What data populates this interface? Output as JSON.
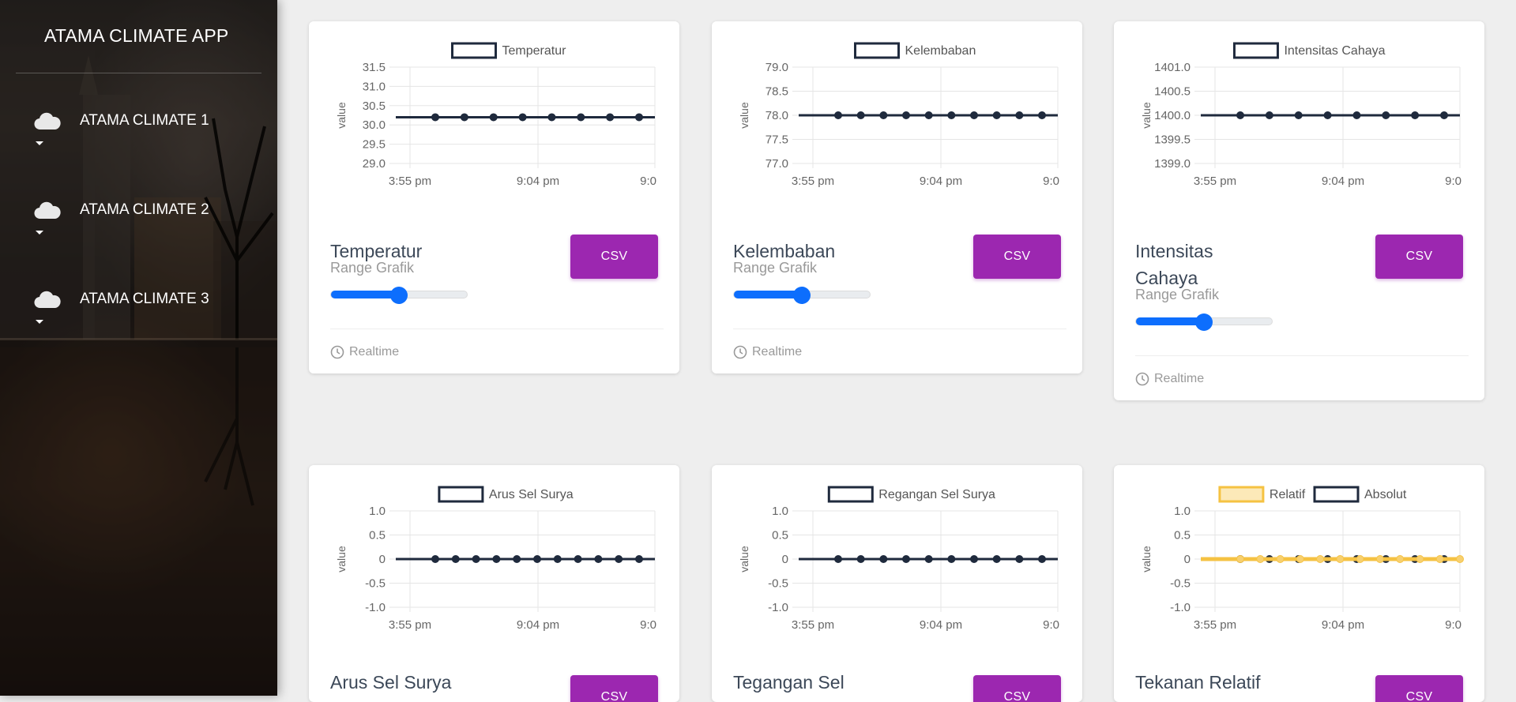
{
  "app": {
    "title": "ATAMA CLIMATE APP"
  },
  "sidebar": {
    "items": [
      {
        "label": "ATAMA CLIMATE 1",
        "icon": "cloud-icon"
      },
      {
        "label": "ATAMA CLIMATE 2",
        "icon": "cloud-icon"
      },
      {
        "label": "ATAMA CLIMATE 3",
        "icon": "cloud-icon"
      }
    ]
  },
  "colors": {
    "accent": "#9c27b0",
    "slider": "#0d6efd",
    "series_dark": "#1f2a3d",
    "series_yellow": "#f5c242"
  },
  "cards": [
    {
      "title": "Temperatur",
      "category": "Range Grafik",
      "button": "CSV",
      "footer": "Realtime",
      "slider_value": 0.5
    },
    {
      "title": "Kelembaban",
      "category": "Range Grafik",
      "button": "CSV",
      "footer": "Realtime",
      "slider_value": 0.5
    },
    {
      "title": "Intensitas Cahaya",
      "category": "Range Grafik",
      "button": "CSV",
      "footer": "Realtime",
      "slider_value": 0.5
    },
    {
      "title": "Arus Sel Surya",
      "button": "CSV"
    },
    {
      "title": "Tegangan Sel",
      "button": "CSV"
    },
    {
      "title": "Tekanan Relatif",
      "button": "CSV"
    }
  ],
  "chart_data": [
    {
      "type": "line",
      "title": "",
      "ylabel": "value",
      "ylim": [
        29.0,
        31.5
      ],
      "yticks": [
        "31.5",
        "31.0",
        "30.5",
        "30.0",
        "29.5",
        "29.0"
      ],
      "xticks": [
        "3:55 pm",
        "9:04 pm",
        "9:0"
      ],
      "series": [
        {
          "name": "Temperatur",
          "values": [
            30.2,
            30.2,
            30.2,
            30.2,
            30.2,
            30.2,
            30.2,
            30.2
          ]
        }
      ]
    },
    {
      "type": "line",
      "title": "",
      "ylabel": "value",
      "ylim": [
        77.0,
        79.0
      ],
      "yticks": [
        "79.0",
        "78.5",
        "78.0",
        "77.5",
        "77.0"
      ],
      "xticks": [
        "3:55 pm",
        "9:04 pm",
        "9:0"
      ],
      "series": [
        {
          "name": "Kelembaban",
          "values": [
            78.0,
            78.0,
            78.0,
            78.0,
            78.0,
            78.0,
            78.0,
            78.0,
            78.0,
            78.0
          ]
        }
      ]
    },
    {
      "type": "line",
      "title": "",
      "ylabel": "value",
      "ylim": [
        1399.0,
        1401.0
      ],
      "yticks": [
        "1401.0",
        "1400.5",
        "1400.0",
        "1399.5",
        "1399.0"
      ],
      "xticks": [
        "3:55 pm",
        "9:04 pm",
        "9:0"
      ],
      "series": [
        {
          "name": "Intensitas Cahaya",
          "values": [
            1400.0,
            1400.0,
            1400.0,
            1400.0,
            1400.0,
            1400.0,
            1400.0,
            1400.0
          ]
        }
      ]
    },
    {
      "type": "line",
      "title": "",
      "ylabel": "value",
      "ylim": [
        -1.0,
        1.0
      ],
      "yticks": [
        "1.0",
        "0.5",
        "0",
        "-0.5",
        "-1.0"
      ],
      "xticks": [
        "3:55 pm",
        "9:04 pm",
        "9:0"
      ],
      "series": [
        {
          "name": "Arus Sel Surya",
          "values": [
            0,
            0,
            0,
            0,
            0,
            0,
            0,
            0,
            0,
            0,
            0
          ]
        }
      ]
    },
    {
      "type": "line",
      "title": "",
      "ylabel": "value",
      "ylim": [
        -1.0,
        1.0
      ],
      "yticks": [
        "1.0",
        "0.5",
        "0",
        "-0.5",
        "-1.0"
      ],
      "xticks": [
        "3:55 pm",
        "9:04 pm",
        "9:0"
      ],
      "series": [
        {
          "name": "Regangan Sel Surya",
          "values": [
            0,
            0,
            0,
            0,
            0,
            0,
            0,
            0,
            0,
            0
          ]
        }
      ]
    },
    {
      "type": "line",
      "title": "",
      "ylabel": "value",
      "ylim": [
        -1.0,
        1.0
      ],
      "yticks": [
        "1.0",
        "0.5",
        "0",
        "-0.5",
        "-1.0"
      ],
      "xticks": [
        "3:55 pm",
        "9:04 pm",
        "9:0"
      ],
      "series": [
        {
          "name": "Relatif",
          "values": [
            0,
            0,
            0,
            0,
            0,
            0,
            0,
            0,
            0,
            0,
            0,
            0
          ]
        },
        {
          "name": "Absolut",
          "values": [
            0,
            0,
            0,
            0,
            0,
            0,
            0,
            0
          ]
        }
      ]
    }
  ]
}
